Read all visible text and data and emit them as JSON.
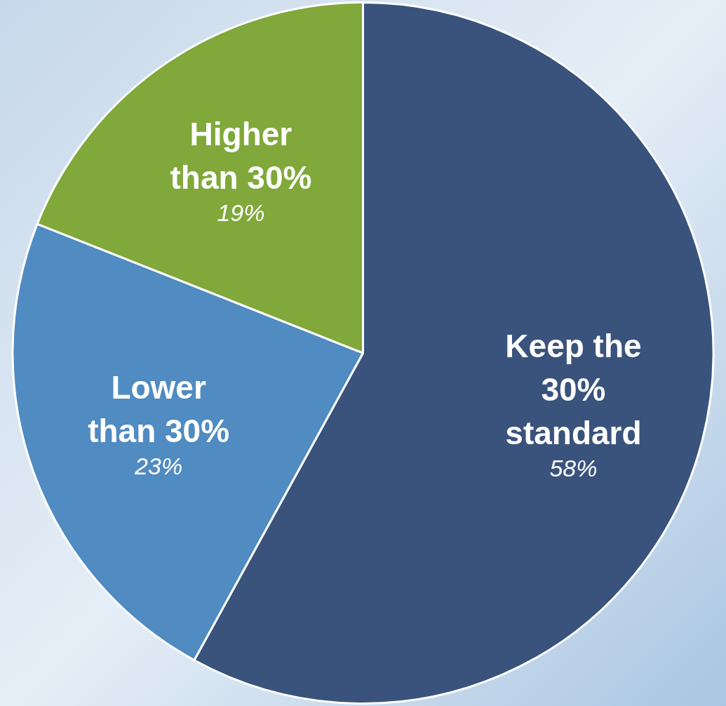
{
  "chart_data": {
    "type": "pie",
    "categories": [
      "Keep the 30% standard",
      "Lower than 30%",
      "Higher than 30%"
    ],
    "values": [
      58,
      23,
      19
    ],
    "colors": [
      "#3a537c",
      "#508bc1",
      "#80a83a"
    ],
    "value_labels": [
      "58%",
      "23%",
      "19%"
    ],
    "legend": false
  }
}
